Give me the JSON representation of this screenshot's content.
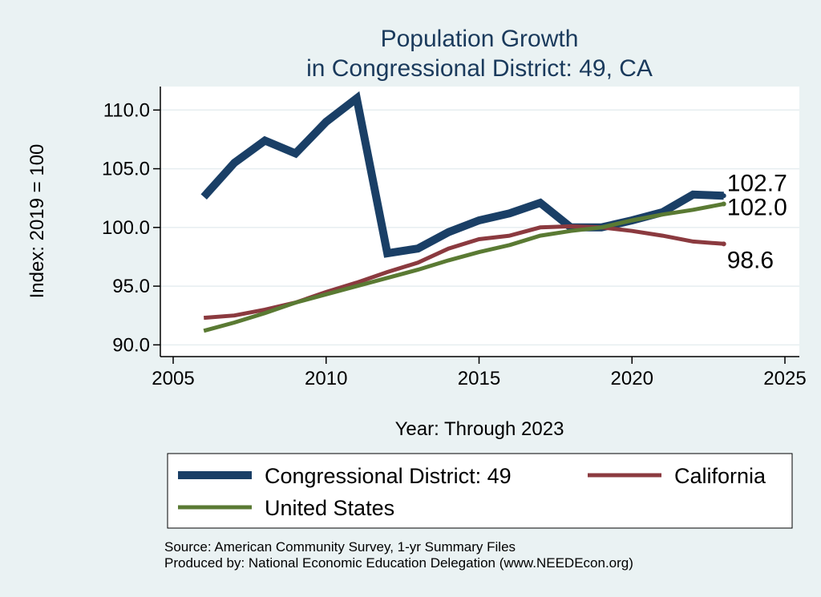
{
  "chart_data": {
    "type": "line",
    "title": "Population Growth",
    "subtitle": "in Congressional District: 49, CA",
    "xlabel": "Year: Through 2023",
    "ylabel": "Index: 2019 = 100",
    "xlim": [
      2005,
      2025
    ],
    "ylim": [
      89,
      112
    ],
    "xticks": [
      2005,
      2010,
      2015,
      2020,
      2025
    ],
    "yticks": [
      90,
      95,
      100,
      105,
      110
    ],
    "ytick_labels": [
      "90.0",
      "95.0",
      "100.0",
      "105.0",
      "110.0"
    ],
    "grid": "horizontal",
    "legend_position": "bottom",
    "series": [
      {
        "name": "Congressional District: 49",
        "color": "#1a3f66",
        "x": [
          2006,
          2007,
          2008,
          2009,
          2010,
          2011,
          2012,
          2013,
          2014,
          2015,
          2016,
          2017,
          2018,
          2019,
          2020,
          2021,
          2022,
          2023
        ],
        "y": [
          102.6,
          105.5,
          107.4,
          106.3,
          109.0,
          111.0,
          97.8,
          98.2,
          99.6,
          100.6,
          101.2,
          102.1,
          100.0,
          100.0,
          100.6,
          101.3,
          102.8,
          102.7
        ],
        "end_label": "102.7"
      },
      {
        "name": "California",
        "color": "#8b3a3f",
        "x": [
          2006,
          2007,
          2008,
          2009,
          2010,
          2011,
          2012,
          2013,
          2014,
          2015,
          2016,
          2017,
          2018,
          2019,
          2020,
          2021,
          2022,
          2023
        ],
        "y": [
          92.3,
          92.5,
          93.0,
          93.6,
          94.5,
          95.3,
          96.2,
          97.0,
          98.2,
          99.0,
          99.3,
          100.0,
          100.1,
          100.0,
          99.7,
          99.3,
          98.8,
          98.6
        ],
        "end_label": "98.6"
      },
      {
        "name": "United States",
        "color": "#5a7a33",
        "x": [
          2006,
          2007,
          2008,
          2009,
          2010,
          2011,
          2012,
          2013,
          2014,
          2015,
          2016,
          2017,
          2018,
          2019,
          2020,
          2021,
          2022,
          2023
        ],
        "y": [
          91.2,
          91.9,
          92.7,
          93.6,
          94.3,
          95.0,
          95.7,
          96.4,
          97.2,
          97.9,
          98.5,
          99.3,
          99.7,
          100.0,
          100.6,
          101.1,
          101.5,
          102.0
        ],
        "end_label": "102.0"
      }
    ],
    "notes": [
      "Source: American Community Survey, 1-yr Summary Files",
      "Produced by: National Economic Education Delegation (www.NEEDEcon.org)"
    ]
  }
}
